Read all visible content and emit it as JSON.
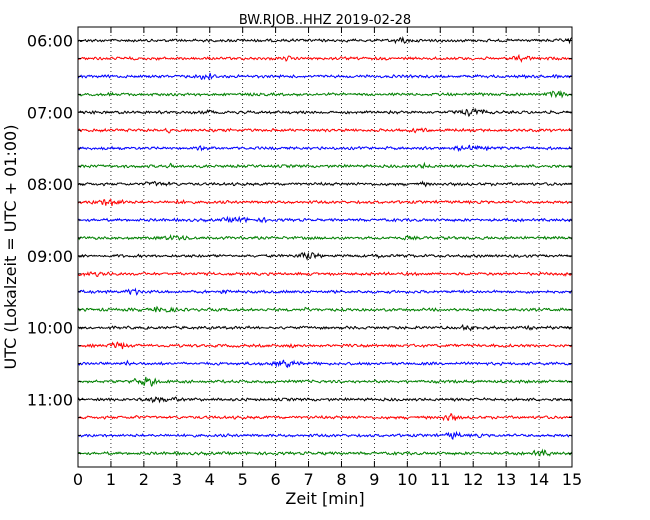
{
  "chart_data": {
    "type": "line",
    "title": "BW.RJOB..HHZ 2019-02-28",
    "xlabel": "Zeit  [min]",
    "ylabel": "UTC (Lokalzeit = UTC + 01:00)",
    "xlim": [
      0,
      15
    ],
    "x_ticks": [
      "0",
      "1",
      "2",
      "3",
      "4",
      "5",
      "6",
      "7",
      "8",
      "9",
      "10",
      "11",
      "12",
      "13",
      "14",
      "15"
    ],
    "y_tick_labels": [
      "06:00",
      "07:00",
      "08:00",
      "09:00",
      "10:00",
      "11:00"
    ],
    "grid": "vertical dotted lines at each minute",
    "trace_colors": [
      "#000000",
      "#ff0000",
      "#0000ff",
      "#008000"
    ],
    "trace_count": 24,
    "trace_interval_minutes": 15,
    "first_trace_start": "06:00",
    "last_trace_start": "11:45"
  }
}
